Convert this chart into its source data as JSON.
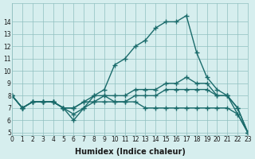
{
  "xlabel": "Humidex (Indice chaleur)",
  "ylabel": "",
  "xlim": [
    0,
    23
  ],
  "ylim": [
    5,
    15
  ],
  "yticks": [
    5,
    6,
    7,
    8,
    9,
    10,
    11,
    12,
    13,
    14
  ],
  "xticks": [
    0,
    1,
    2,
    3,
    4,
    5,
    6,
    7,
    8,
    9,
    10,
    11,
    12,
    13,
    14,
    15,
    16,
    17,
    18,
    19,
    20,
    21,
    22,
    23
  ],
  "bg_color": "#d6eeee",
  "line_color": "#1a6b6b",
  "lines": [
    {
      "x": [
        0,
        1,
        2,
        3,
        4,
        5,
        6,
        7,
        8,
        9,
        10,
        11,
        12,
        13,
        14,
        15,
        16,
        17,
        18,
        19,
        20,
        21,
        22,
        23
      ],
      "y": [
        8,
        7,
        7.5,
        7.5,
        7.5,
        7,
        6.5,
        7,
        8,
        8.5,
        10.5,
        11,
        12,
        12.5,
        13.5,
        14,
        14,
        14.5,
        11.5,
        9.5,
        8.5,
        8,
        6.5,
        5
      ]
    },
    {
      "x": [
        0,
        1,
        2,
        3,
        4,
        5,
        6,
        7,
        8,
        9,
        10,
        11,
        12,
        13,
        14,
        15,
        16,
        17,
        18,
        19,
        20,
        21,
        22,
        23
      ],
      "y": [
        8,
        7,
        7.5,
        7.5,
        7.5,
        7,
        7,
        7.5,
        7.5,
        7.5,
        7.5,
        7.5,
        8,
        8,
        8,
        8.5,
        8.5,
        8.5,
        8.5,
        8.5,
        8,
        8,
        7,
        5
      ]
    },
    {
      "x": [
        0,
        1,
        2,
        3,
        4,
        5,
        6,
        7,
        8,
        9,
        10,
        11,
        12,
        13,
        14,
        15,
        16,
        17,
        18,
        19,
        20,
        21,
        22,
        23
      ],
      "y": [
        8,
        7,
        7.5,
        7.5,
        7.5,
        7,
        6,
        7,
        7.5,
        8,
        7.5,
        7.5,
        7.5,
        7,
        7,
        7,
        7,
        7,
        7,
        7,
        7,
        7,
        6.5,
        5
      ]
    },
    {
      "x": [
        0,
        1,
        2,
        3,
        4,
        5,
        6,
        7,
        8,
        9,
        10,
        11,
        12,
        13,
        14,
        15,
        16,
        17,
        18,
        19,
        20,
        21,
        22,
        23
      ],
      "y": [
        8,
        7,
        7.5,
        7.5,
        7.5,
        7,
        7,
        7.5,
        8,
        8,
        8,
        8,
        8.5,
        8.5,
        8.5,
        9,
        9,
        9.5,
        9,
        9,
        8,
        8,
        7,
        5
      ]
    }
  ]
}
